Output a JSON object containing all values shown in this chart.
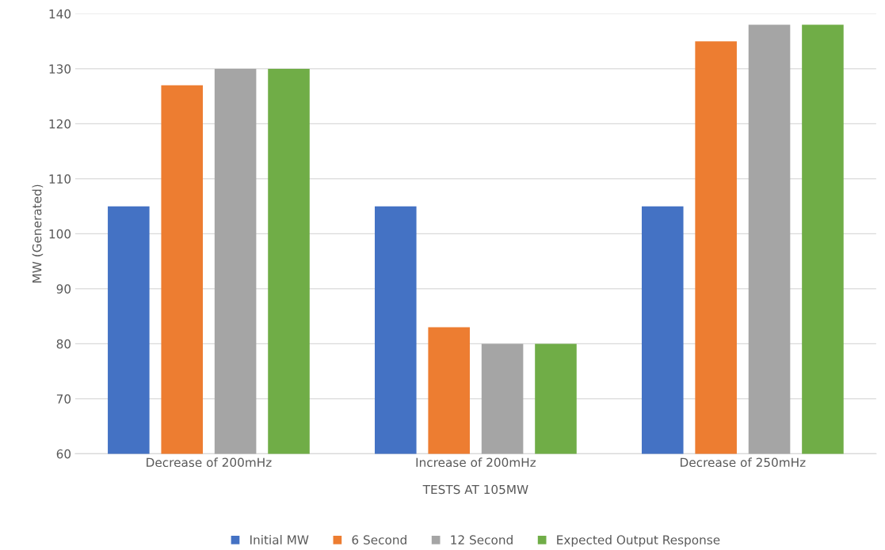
{
  "chart_data": {
    "type": "bar",
    "xlabel": "TESTS AT 105MW",
    "ylabel": "MW (Generated)",
    "categories": [
      "Decrease of 200mHz",
      "Increase of 200mHz",
      "Decrease of 250mHz"
    ],
    "series": [
      {
        "name": "Initial MW",
        "color": "#4472c4",
        "values": [
          105,
          105,
          105
        ]
      },
      {
        "name": "6 Second",
        "color": "#ed7d31",
        "values": [
          127,
          83,
          135
        ]
      },
      {
        "name": "12 Second",
        "color": "#a5a5a5",
        "values": [
          130,
          80,
          138
        ]
      },
      {
        "name": "Expected Output Response",
        "color": "#70ad47",
        "values": [
          130,
          80,
          138
        ]
      }
    ],
    "ylim": [
      60,
      140
    ],
    "yticks": [
      60,
      70,
      80,
      90,
      100,
      110,
      120,
      130,
      140
    ],
    "grid": "y",
    "legend": "bottom"
  }
}
